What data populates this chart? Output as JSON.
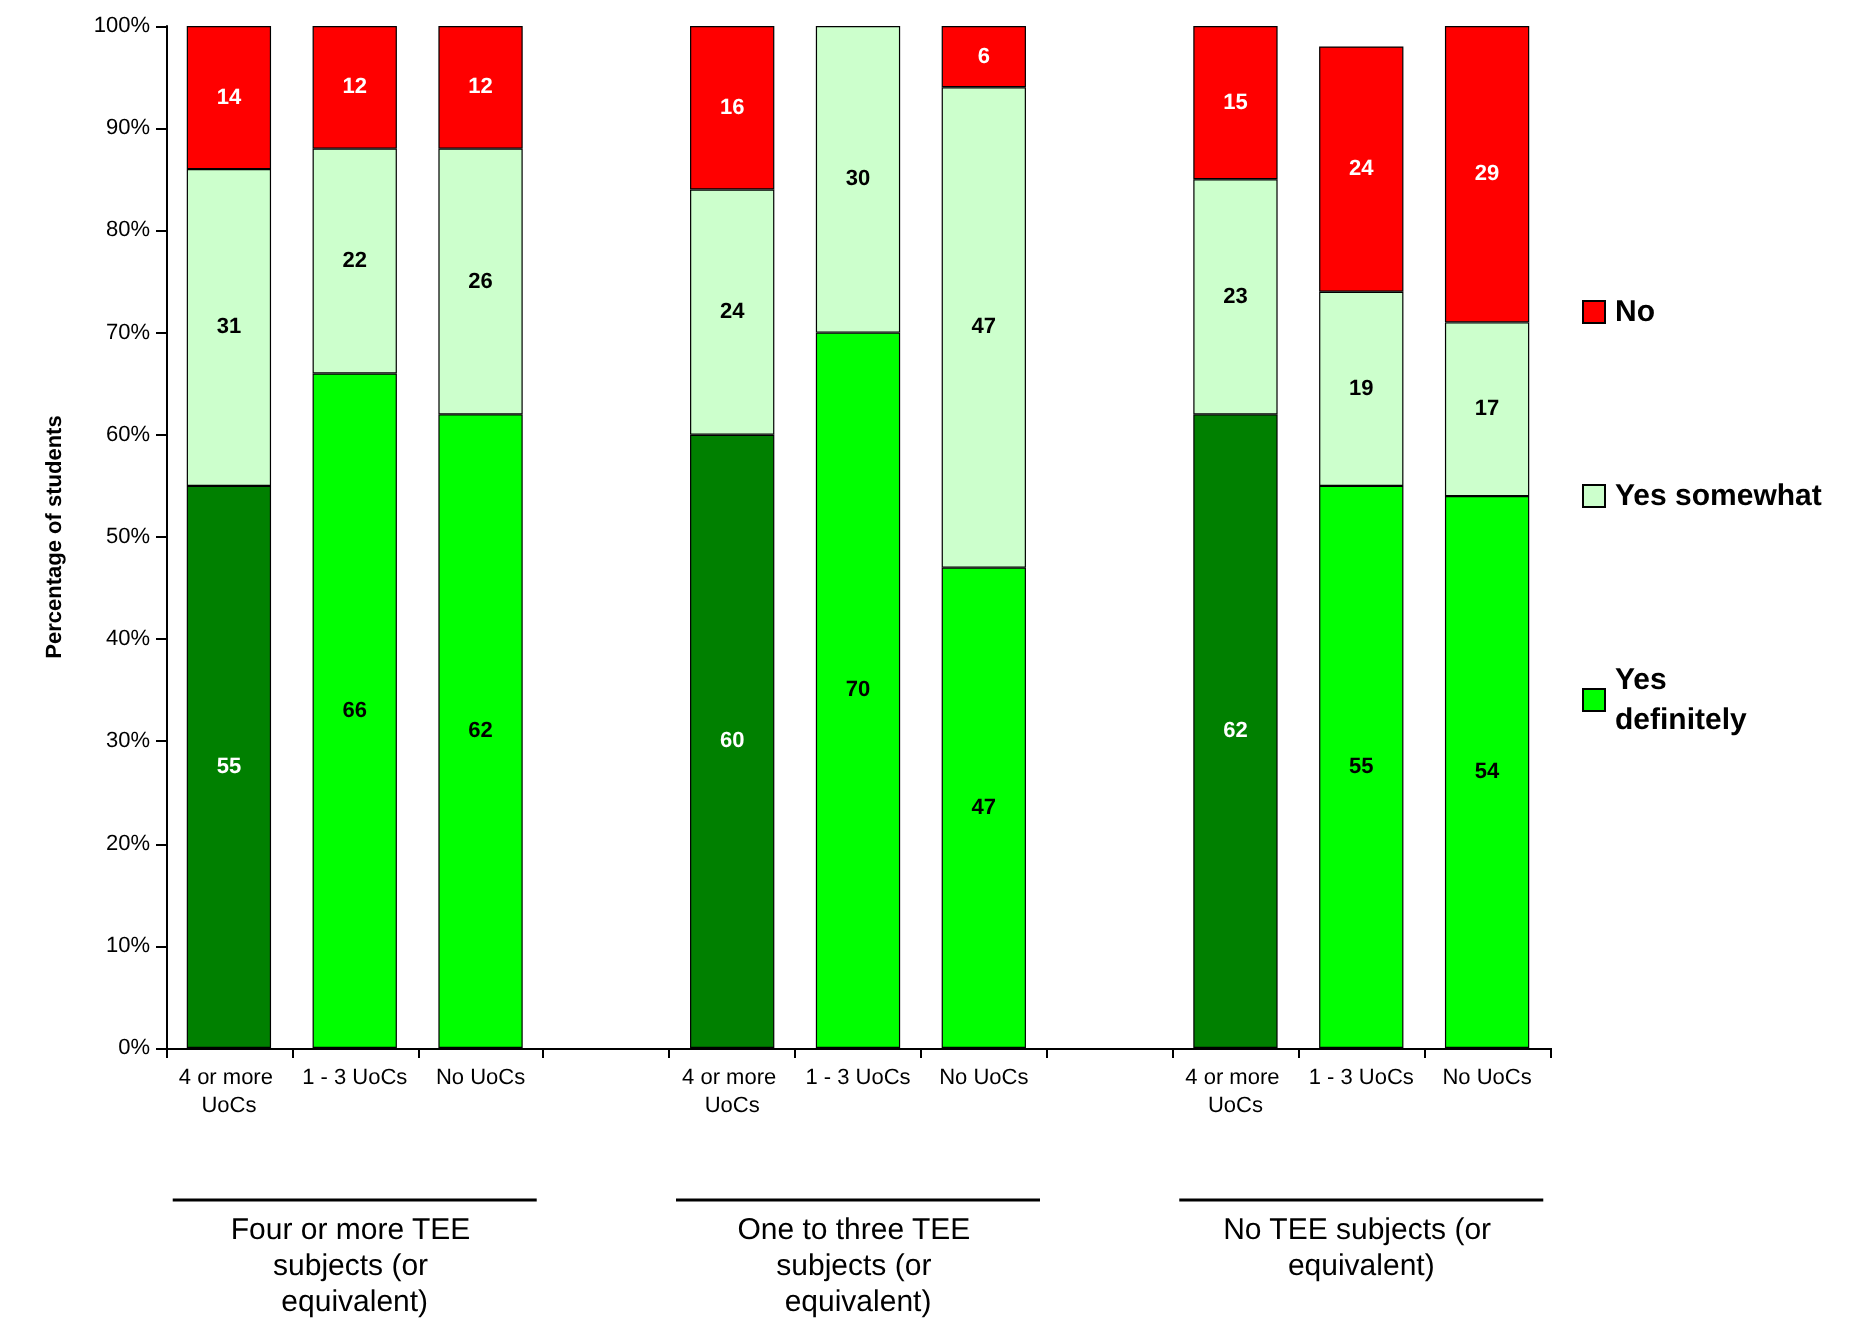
{
  "chart_data": {
    "type": "bar",
    "stacked": true,
    "ylabel": "Percentage of students",
    "categories": [
      "4 or more UoCs",
      "1 - 3 UoCs",
      "No UoCs",
      null,
      "4 or more UoCs",
      "1 - 3 UoCs",
      "No UoCs",
      null,
      "4 or more UoCs",
      "1 - 3 UoCs",
      "No UoCs"
    ],
    "series": [
      {
        "name": "Yes definitely",
        "color": "#00ff00",
        "colors": [
          "#008000",
          "#00ff00",
          "#00ff00",
          null,
          "#008000",
          "#00ff00",
          "#00ff00",
          null,
          "#008000",
          "#00ff00",
          "#00ff00"
        ],
        "values": [
          55,
          66,
          62,
          null,
          60,
          70,
          47,
          null,
          62,
          55,
          54
        ]
      },
      {
        "name": "Yes somewhat",
        "color": "#ccffcc",
        "values": [
          31,
          22,
          26,
          null,
          24,
          30,
          47,
          null,
          23,
          19,
          17
        ]
      },
      {
        "name": "No",
        "color": "#ff0000",
        "values": [
          14,
          12,
          12,
          null,
          16,
          null,
          6,
          null,
          15,
          24,
          29
        ]
      }
    ],
    "ylim": [
      0,
      100
    ],
    "yticks": [
      {
        "value": 0,
        "label": "0%"
      },
      {
        "value": 10,
        "label": "10%"
      },
      {
        "value": 20,
        "label": "20%"
      },
      {
        "value": 30,
        "label": "30%"
      },
      {
        "value": 40,
        "label": "40%"
      },
      {
        "value": 50,
        "label": "50%"
      },
      {
        "value": 60,
        "label": "60%"
      },
      {
        "value": 70,
        "label": "70%"
      },
      {
        "value": 80,
        "label": "80%"
      },
      {
        "value": 90,
        "label": "90%"
      },
      {
        "value": 100,
        "label": "100%"
      }
    ],
    "data_labels": true,
    "grid": false,
    "legend": "right",
    "annotations": [
      "Four or more TEE subjects (or equivalent)",
      "One to three TEE subjects (or equivalent)",
      "No TEE subjects (or equivalent)"
    ]
  }
}
